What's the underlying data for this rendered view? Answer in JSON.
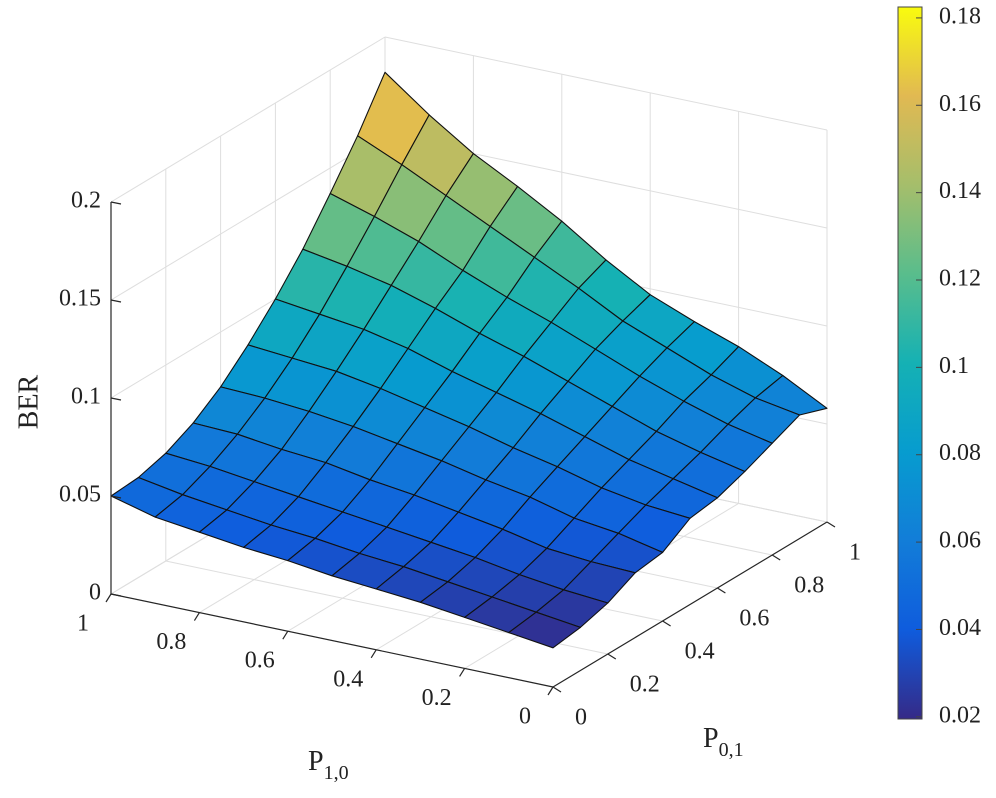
{
  "chart_data": {
    "type": "surface",
    "zlabel": "BER",
    "xlabel_main": "P",
    "xlabel_sub": "1,0",
    "ylabel_main": "P",
    "ylabel_sub": "0,1",
    "x_axis_name": "P_1,0",
    "y_axis_name": "P_0,1",
    "x_ticks": [
      "0",
      "0.2",
      "0.4",
      "0.6",
      "0.8",
      "1"
    ],
    "y_ticks": [
      "0",
      "0.2",
      "0.4",
      "0.6",
      "0.8",
      "1"
    ],
    "z_ticks": [
      "0",
      "0.05",
      "0.1",
      "0.15",
      "0.2"
    ],
    "zlim": [
      0,
      0.2
    ],
    "grid": "on",
    "colormap": "parula",
    "colorbar": {
      "clim": [
        0.0195,
        0.1825
      ],
      "ticks": [
        "0.02",
        "0.04",
        "0.06",
        "0.08",
        "0.1",
        "0.12",
        "0.14",
        "0.16",
        "0.18"
      ],
      "location": "right"
    },
    "x": [
      0,
      0.1,
      0.2,
      0.3,
      0.4,
      0.5,
      0.6,
      0.7,
      0.8,
      0.9,
      1.0
    ],
    "y": [
      0,
      0.1,
      0.2,
      0.3,
      0.4,
      0.5,
      0.6,
      0.7,
      0.8,
      0.9,
      1.0
    ],
    "z_note": "rows indexed by P_1,0 (x), columns by P_0,1 (y)",
    "z": [
      [
        0.02,
        0.022,
        0.026,
        0.033,
        0.035,
        0.044,
        0.046,
        0.051,
        0.057,
        0.063,
        0.058
      ],
      [
        0.023,
        0.025,
        0.028,
        0.034,
        0.04,
        0.046,
        0.051,
        0.056,
        0.062,
        0.067,
        0.07
      ],
      [
        0.026,
        0.028,
        0.031,
        0.036,
        0.043,
        0.05,
        0.056,
        0.062,
        0.069,
        0.074,
        0.08
      ],
      [
        0.029,
        0.031,
        0.035,
        0.041,
        0.049,
        0.056,
        0.063,
        0.07,
        0.077,
        0.083,
        0.088
      ],
      [
        0.031,
        0.034,
        0.038,
        0.045,
        0.053,
        0.061,
        0.07,
        0.078,
        0.086,
        0.092,
        0.097
      ],
      [
        0.033,
        0.036,
        0.041,
        0.049,
        0.058,
        0.067,
        0.076,
        0.086,
        0.095,
        0.104,
        0.11
      ],
      [
        0.036,
        0.039,
        0.044,
        0.052,
        0.062,
        0.072,
        0.082,
        0.093,
        0.103,
        0.115,
        0.125
      ],
      [
        0.038,
        0.041,
        0.047,
        0.056,
        0.066,
        0.077,
        0.089,
        0.101,
        0.112,
        0.126,
        0.138
      ],
      [
        0.041,
        0.044,
        0.05,
        0.058,
        0.069,
        0.081,
        0.094,
        0.108,
        0.122,
        0.137,
        0.15
      ],
      [
        0.044,
        0.047,
        0.053,
        0.061,
        0.071,
        0.083,
        0.097,
        0.113,
        0.13,
        0.148,
        0.165
      ],
      [
        0.05,
        0.051,
        0.055,
        0.062,
        0.072,
        0.085,
        0.1,
        0.117,
        0.137,
        0.158,
        0.182
      ]
    ]
  }
}
